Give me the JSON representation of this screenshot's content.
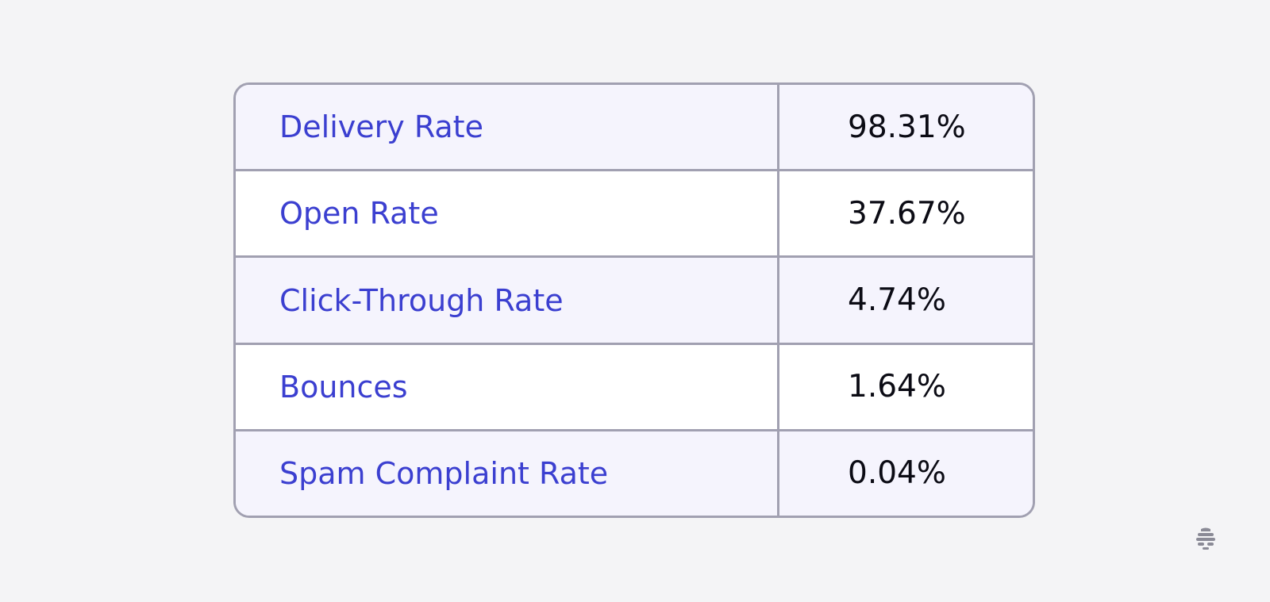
{
  "metrics": [
    {
      "label": "Delivery Rate",
      "value": "98.31%"
    },
    {
      "label": "Open Rate",
      "value": "37.67%"
    },
    {
      "label": "Click-Through Rate",
      "value": "4.74%"
    },
    {
      "label": "Bounces",
      "value": "1.64%"
    },
    {
      "label": "Spam Complaint Rate",
      "value": "0.04%"
    }
  ],
  "colors": {
    "label_text": "#3b3fd0",
    "value_text": "#0b0b14",
    "border": "#a1a0b1",
    "shaded_row": "#f5f4fd",
    "background": "#f4f4f6",
    "logo": "#8a8a96"
  },
  "logo": {
    "icon": "beehive-logo-icon"
  }
}
